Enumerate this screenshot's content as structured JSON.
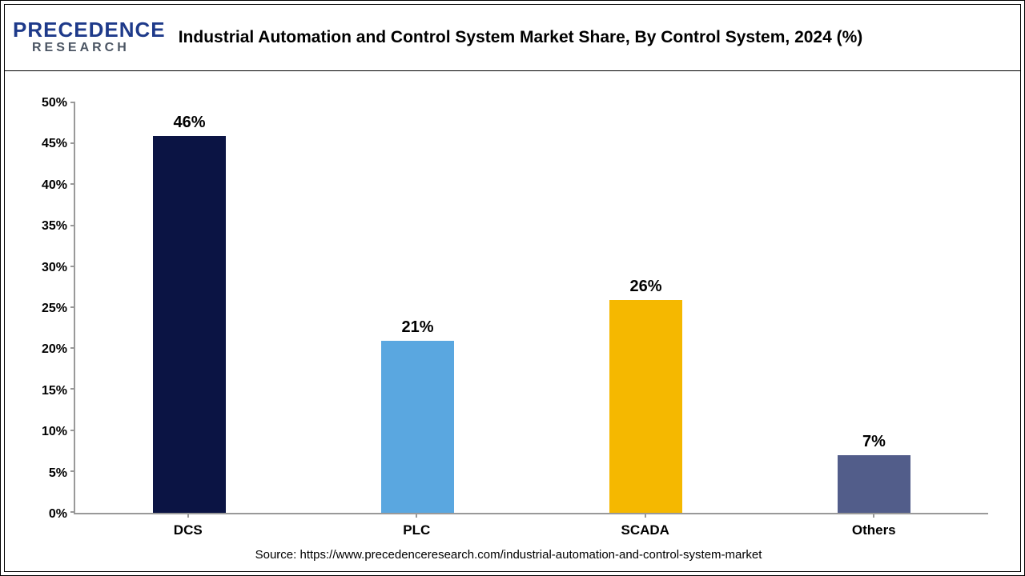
{
  "logo": {
    "line1": "PRECEDENCE",
    "line2": "RESEARCH",
    "color_primary": "#1e3a8a",
    "color_secondary": "#4b5563"
  },
  "chart": {
    "type": "bar",
    "title": "Industrial Automation and Control System Market Share, By Control System, 2024 (%)",
    "title_fontsize": 21,
    "categories": [
      "DCS",
      "PLC",
      "SCADA",
      "Others"
    ],
    "values": [
      46,
      21,
      26,
      7
    ],
    "value_suffix": "%",
    "bar_colors": [
      "#0b1444",
      "#5aa7e0",
      "#f5b800",
      "#525d8a"
    ],
    "ylim": [
      0,
      50
    ],
    "ytick_step": 5,
    "ytick_suffix": "%",
    "axis_color": "#999999",
    "label_fontsize": 20,
    "tick_fontsize": 16,
    "category_fontsize": 17,
    "background_color": "#ffffff",
    "bar_width_pct": 32
  },
  "source": {
    "prefix": "Source: ",
    "url": "https://www.precedenceresearch.com/industrial-automation-and-control-system-market",
    "fontsize": 15
  }
}
